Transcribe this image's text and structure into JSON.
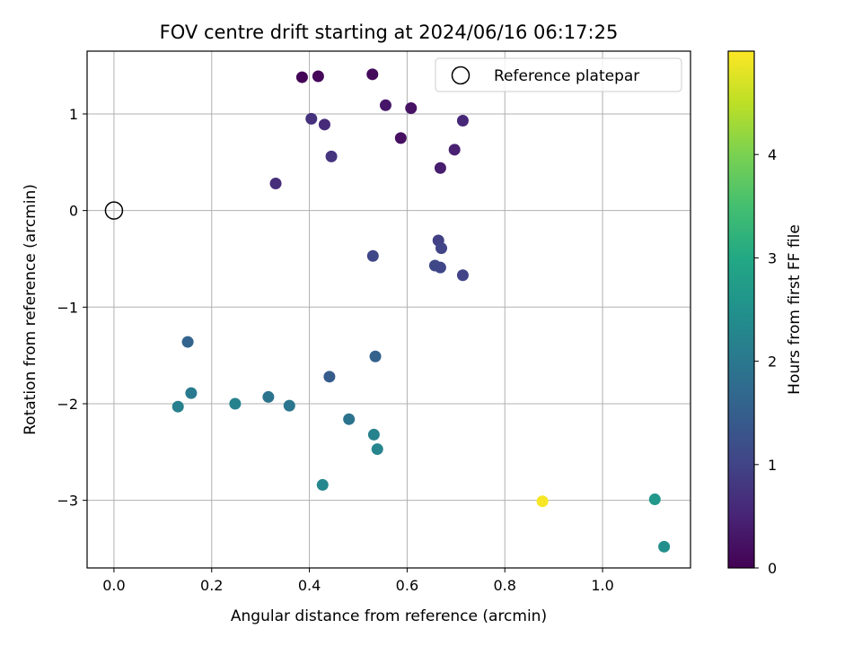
{
  "chart_data": {
    "type": "scatter",
    "title": "FOV centre drift starting at 2024/06/16 06:17:25",
    "xlabel": "Angular distance from reference (arcmin)",
    "ylabel": "Rotation from reference (arcmin)",
    "xlim": [
      -0.055,
      1.18
    ],
    "ylim": [
      -3.7,
      1.65
    ],
    "xticks": [
      0.0,
      0.2,
      0.4,
      0.6,
      0.8,
      1.0
    ],
    "xtick_labels": [
      "0.0",
      "0.2",
      "0.4",
      "0.6",
      "0.8",
      "1.0"
    ],
    "yticks": [
      1,
      0,
      -1,
      -2,
      -3
    ],
    "ytick_labels": [
      "1",
      "0",
      "−1",
      "−2",
      "−3"
    ],
    "grid": true,
    "legend": {
      "position": "top-right",
      "entries": [
        "Reference platepar"
      ]
    },
    "reference_point": {
      "x": 0.0,
      "y": 0.0
    },
    "colorbar": {
      "label": "Hours from first FF file",
      "range": [
        0,
        5.0
      ],
      "ticks": [
        0,
        1,
        2,
        3,
        4
      ],
      "tick_labels": [
        "0",
        "1",
        "2",
        "3",
        "4"
      ],
      "colormap": "viridis"
    },
    "points": [
      {
        "x": 0.385,
        "y": 1.38,
        "c": 0.05
      },
      {
        "x": 0.418,
        "y": 1.39,
        "c": 0.1
      },
      {
        "x": 0.529,
        "y": 1.41,
        "c": 0.12
      },
      {
        "x": 0.556,
        "y": 1.09,
        "c": 0.3
      },
      {
        "x": 0.608,
        "y": 1.06,
        "c": 0.25
      },
      {
        "x": 0.587,
        "y": 0.75,
        "c": 0.2
      },
      {
        "x": 0.714,
        "y": 0.93,
        "c": 0.55
      },
      {
        "x": 0.404,
        "y": 0.95,
        "c": 0.7
      },
      {
        "x": 0.431,
        "y": 0.89,
        "c": 0.6
      },
      {
        "x": 0.697,
        "y": 0.63,
        "c": 0.45
      },
      {
        "x": 0.668,
        "y": 0.44,
        "c": 0.4
      },
      {
        "x": 0.445,
        "y": 0.56,
        "c": 0.75
      },
      {
        "x": 0.331,
        "y": 0.28,
        "c": 0.65
      },
      {
        "x": 0.664,
        "y": -0.31,
        "c": 0.95
      },
      {
        "x": 0.67,
        "y": -0.39,
        "c": 1.0
      },
      {
        "x": 0.53,
        "y": -0.47,
        "c": 1.05
      },
      {
        "x": 0.657,
        "y": -0.57,
        "c": 1.1
      },
      {
        "x": 0.668,
        "y": -0.59,
        "c": 1.05
      },
      {
        "x": 0.714,
        "y": -0.67,
        "c": 1.0
      },
      {
        "x": 0.151,
        "y": -1.36,
        "c": 1.6
      },
      {
        "x": 0.535,
        "y": -1.51,
        "c": 1.55
      },
      {
        "x": 0.441,
        "y": -1.72,
        "c": 1.45
      },
      {
        "x": 0.158,
        "y": -1.89,
        "c": 2.05
      },
      {
        "x": 0.131,
        "y": -2.03,
        "c": 2.15
      },
      {
        "x": 0.248,
        "y": -2.0,
        "c": 2.2
      },
      {
        "x": 0.316,
        "y": -1.93,
        "c": 1.9
      },
      {
        "x": 0.359,
        "y": -2.02,
        "c": 1.95
      },
      {
        "x": 0.481,
        "y": -2.16,
        "c": 1.9
      },
      {
        "x": 0.532,
        "y": -2.32,
        "c": 2.2
      },
      {
        "x": 0.539,
        "y": -2.47,
        "c": 2.25
      },
      {
        "x": 0.427,
        "y": -2.84,
        "c": 2.3
      },
      {
        "x": 0.877,
        "y": -3.01,
        "c": 4.95
      },
      {
        "x": 1.107,
        "y": -2.99,
        "c": 2.65
      },
      {
        "x": 1.126,
        "y": -3.48,
        "c": 2.45
      }
    ]
  }
}
